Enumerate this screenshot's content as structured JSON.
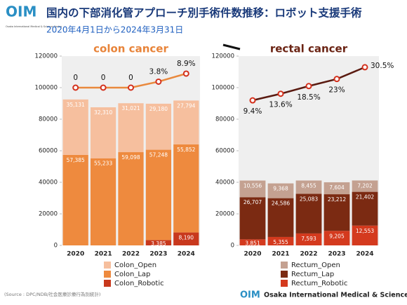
{
  "header": {
    "logo": "OIM",
    "logo_subtitle": "Osaka International Medical & Science Center",
    "title": "国内の下部消化管アプローチ別手術件数推移：ロボット支援手術",
    "subtitle": "2020年4月1日から2024年3月31日"
  },
  "chart_data": [
    {
      "type": "bar",
      "stacked": true,
      "title": "colon cancer",
      "title_color": "#e8843a",
      "categories": [
        "2020",
        "2021",
        "2022",
        "2023",
        "2024"
      ],
      "ylim": [
        0,
        120000
      ],
      "yticks": [
        0,
        20000,
        40000,
        60000,
        80000,
        100000,
        120000
      ],
      "grid": false,
      "y2lim": [
        -100,
        20
      ],
      "series": [
        {
          "name": "Colon_Robotic",
          "color": "#c8381d",
          "values": [
            0,
            0,
            0,
            3385,
            8190
          ],
          "value_labels": [
            null,
            null,
            null,
            "3,385",
            "8,190"
          ]
        },
        {
          "name": "Colon_Lap",
          "color": "#ee8a3e",
          "values": [
            57385,
            55233,
            59098,
            57248,
            55852
          ],
          "value_labels": [
            "57,385",
            "55,233",
            "59,098",
            "57,248",
            "55,852"
          ]
        },
        {
          "name": "Colon_Open",
          "color": "#f6bf9e",
          "values": [
            35131,
            32310,
            31021,
            29180,
            27794
          ],
          "value_labels": [
            "35,131",
            "32,310",
            "31,021",
            "29,180",
            "27,794"
          ]
        },
        {
          "type": "line",
          "axis": "y2",
          "color": "#e9893d",
          "marker_color": "#d3301c",
          "values": [
            0,
            0,
            0,
            3.8,
            8.9
          ],
          "value_labels": [
            "0",
            "0",
            "0",
            "3.8%",
            "8.9%"
          ]
        }
      ]
    },
    {
      "type": "bar",
      "stacked": true,
      "title": "rectal cancer",
      "title_color": "#6b2414",
      "categories": [
        "2020",
        "2021",
        "2022",
        "2023",
        "2024"
      ],
      "ylim": [
        0,
        120000
      ],
      "yticks": [
        0,
        20000,
        40000,
        60000,
        80000,
        100000,
        120000
      ],
      "grid": false,
      "y2lim": [
        -83,
        37.6
      ],
      "series": [
        {
          "name": "Rectum_Robotic",
          "color": "#d43a1e",
          "values": [
            3851,
            5355,
            7593,
            9205,
            12553
          ],
          "value_labels": [
            "3,851",
            "5,355",
            "7,593",
            "9,205",
            "12,553"
          ]
        },
        {
          "name": "Rectum_Lap",
          "color": "#7b2a12",
          "values": [
            26707,
            24586,
            25083,
            23212,
            21402
          ],
          "value_labels": [
            "26,707",
            "24,586",
            "25,083",
            "23,212",
            "21,402"
          ]
        },
        {
          "name": "Rectum_Open",
          "color": "#c4a191",
          "values": [
            10556,
            9368,
            8455,
            7604,
            7202
          ],
          "value_labels": [
            "10,556",
            "9,368",
            "8,455",
            "7,604",
            "7,202"
          ]
        },
        {
          "type": "line",
          "axis": "y2",
          "color": "#5a1a10",
          "marker_color": "#d3301c",
          "values": [
            9.4,
            13.6,
            18.5,
            23,
            30.5
          ],
          "value_labels": [
            "9.4%",
            "13.6%",
            "18.5%",
            "23%",
            "30.5%"
          ]
        }
      ]
    }
  ],
  "footer": {
    "source": "(Source : DPC/NDB/社会医療診療行為別統計)",
    "logo": "OIM",
    "organization": "Osaka International Medical & Science Center"
  }
}
